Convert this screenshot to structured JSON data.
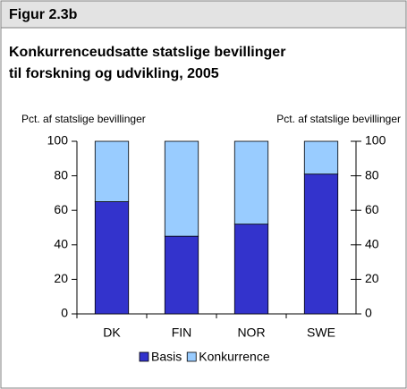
{
  "chart_data": {
    "type": "stacked_bar",
    "figure_label": "Figur 2.3b",
    "title": "Konkurrenceudsatte statslige bevillinger",
    "title_line2": "til forskning og udvikling, 2005",
    "ylabel": "Pct. af statslige bevillinger",
    "y2label": "Pct. af statslige bevillinger",
    "categories": [
      "DK",
      "FIN",
      "NOR",
      "SWE"
    ],
    "series": [
      {
        "name": "Basis",
        "color": "#3333cc",
        "values": [
          65,
          45,
          52,
          81
        ]
      },
      {
        "name": "Konkurrence",
        "color": "#99ccff",
        "values": [
          35,
          55,
          48,
          19
        ]
      }
    ],
    "ylim": [
      0,
      100
    ],
    "yticks": [
      0,
      20,
      40,
      60,
      80,
      100
    ],
    "y2lim": [
      0,
      100
    ],
    "y2ticks": [
      0,
      20,
      40,
      60,
      80,
      100
    ],
    "grid": false,
    "legend": "bottom"
  }
}
